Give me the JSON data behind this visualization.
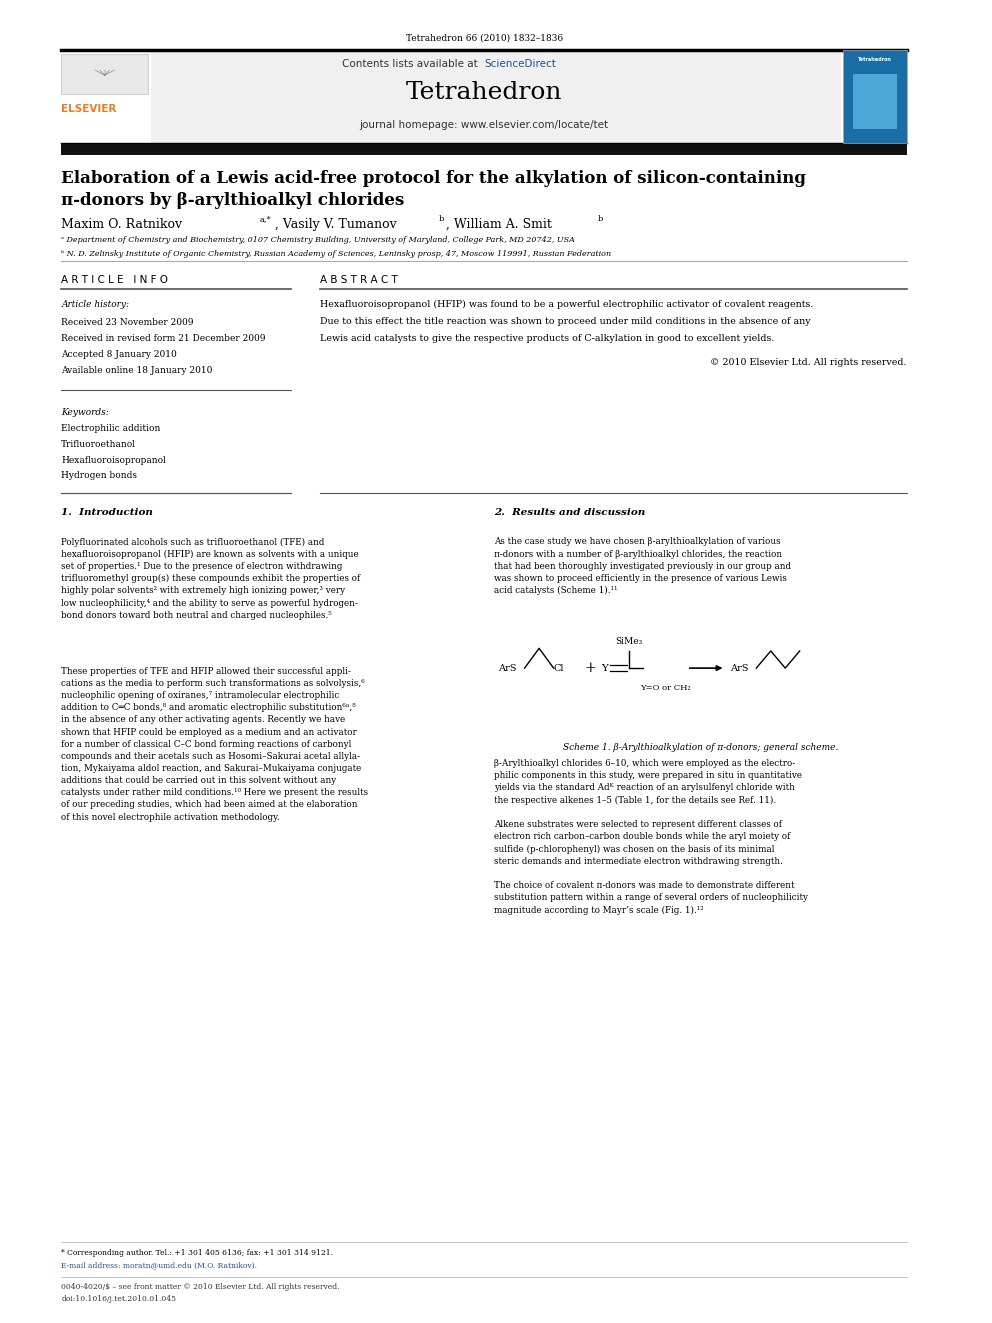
{
  "bg_color": "#ffffff",
  "page_width": 9.92,
  "page_height": 13.23,
  "journal_ref": "Tetrahedron 66 (2010) 1832–1836",
  "journal_name": "Tetrahedron",
  "homepage": "journal homepage: www.elsevier.com/locate/tet",
  "elsevier_color": "#f47920",
  "sciencedirect_color": "#1f5099",
  "title_line1": "Elaboration of a Lewis acid-free protocol for the alkylation of silicon-containing",
  "title_line2": "π-donors by β-arylthioalkyl chlorides",
  "affil_a": "ᵃ Department of Chemistry and Biochemistry, 0107 Chemistry Building, University of Maryland, College Park, MD 20742, USA",
  "affil_b": "ᵇ N. D. Zelinsky Institute of Organic Chemistry, Russian Academy of Sciences, Leninsky prosp, 47, Moscow 119991, Russian Federation",
  "article_info_header": "ARTICLE INFO",
  "abstract_header": "ABSTRACT",
  "article_history_label": "Article history:",
  "received1": "Received 23 November 2009",
  "received2": "Received in revised form 21 December 2009",
  "accepted": "Accepted 8 January 2010",
  "available": "Available online 18 January 2010",
  "keywords_label": "Keywords:",
  "keywords": [
    "Electrophilic addition",
    "Trifluoroethanol",
    "Hexafluoroisopropanol",
    "Hydrogen bonds"
  ],
  "copyright": "© 2010 Elsevier Ltd. All rights reserved.",
  "section1_title": "1.  Introduction",
  "section2_title": "2.  Results and discussion",
  "scheme_caption": "Scheme 1. β-Arylthioalkylation of π-donors; general scheme.",
  "footer_corresponding": "* Corresponding author. Tel.: +1 301 405 6136; fax: +1 301 314 9121.",
  "footer_email": "E-mail address: moratn@umd.edu (M.O. Ratnikov).",
  "footer_issn": "0040-4020/$ – see front matter © 2010 Elsevier Ltd. All rights reserved.",
  "footer_doi": "doi:10.1016/j.tet.2010.01.045"
}
